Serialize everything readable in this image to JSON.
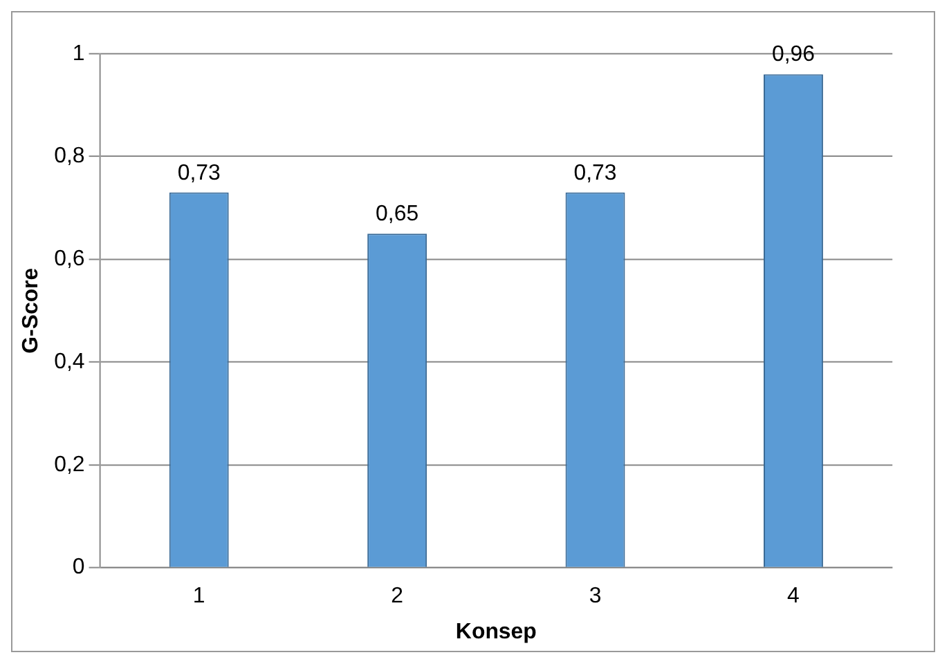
{
  "chart_data": {
    "type": "bar",
    "xlabel": "Konsep",
    "ylabel": "G-Score",
    "categories": [
      "1",
      "2",
      "3",
      "4"
    ],
    "values": [
      0.73,
      0.65,
      0.73,
      0.96
    ],
    "value_labels": [
      "0,73",
      "0,65",
      "0,73",
      "0,96"
    ],
    "color": "#5b9bd5",
    "ylim": [
      0,
      1
    ],
    "yticks": [
      0,
      {
        "value": 0.2,
        "label": "0,2"
      },
      {
        "value": 0.4,
        "label": "0,4"
      },
      {
        "value": 0.6,
        "label": "0,6"
      },
      {
        "value": 0.8,
        "label": "0,8"
      },
      1
    ],
    "grid": "y",
    "legend": false
  }
}
